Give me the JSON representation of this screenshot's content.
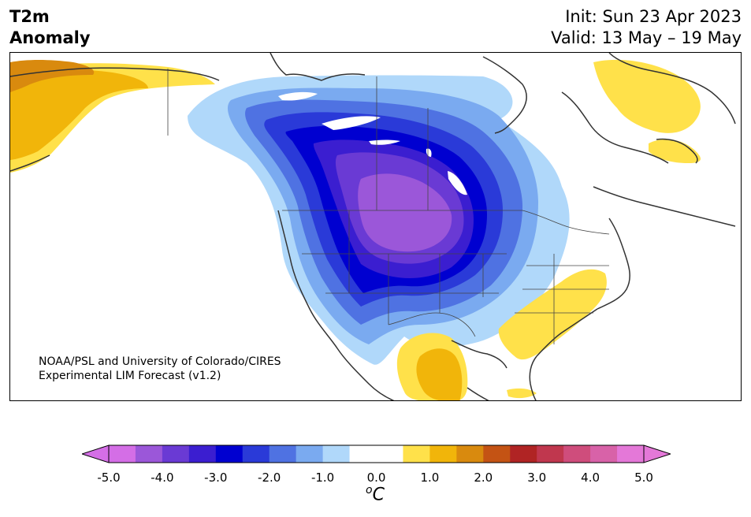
{
  "header": {
    "variable": "T2m",
    "kind": "Anomaly",
    "init": "Init: Sun 23 Apr 2023",
    "valid": "Valid: 13 May – 19 May"
  },
  "credit": {
    "line1": "NOAA/PSL and University of Colorado/CIRES",
    "line2": "Experimental LIM Forecast (v1.2)"
  },
  "colorbar": {
    "unit_sup": "o",
    "unit_main": "C",
    "ticks": [
      "-5.0",
      "-4.0",
      "-3.0",
      "-2.0",
      "-1.0",
      "0.0",
      "1.0",
      "2.0",
      "3.0",
      "4.0",
      "5.0"
    ],
    "colors": [
      "#d46ee6",
      "#9b57d9",
      "#6a3ad4",
      "#3b1ed0",
      "#0000d0",
      "#2a3ad8",
      "#4f72e2",
      "#7aaaf0",
      "#b0d8fa",
      "#ffffff",
      "#ffffff",
      "#ffe14a",
      "#f1b50a",
      "#d98a0e",
      "#c45314",
      "#b02424",
      "#c0374e",
      "#cf4d7c",
      "#d862a8",
      "#e478d8"
    ],
    "under_color": "#d46ee6",
    "over_color": "#e478d8"
  },
  "map": {
    "region": "North America",
    "cold_anomaly_colors": [
      "#b0d8fa",
      "#7aaaf0",
      "#4f72e2",
      "#2a3ad8",
      "#0000d0",
      "#3b1ed0",
      "#6a3ad4",
      "#9b57d9"
    ],
    "warm_anomaly_colors": [
      "#ffe14a",
      "#f1b50a",
      "#d98a0e"
    ],
    "coast_color": "#333333"
  }
}
